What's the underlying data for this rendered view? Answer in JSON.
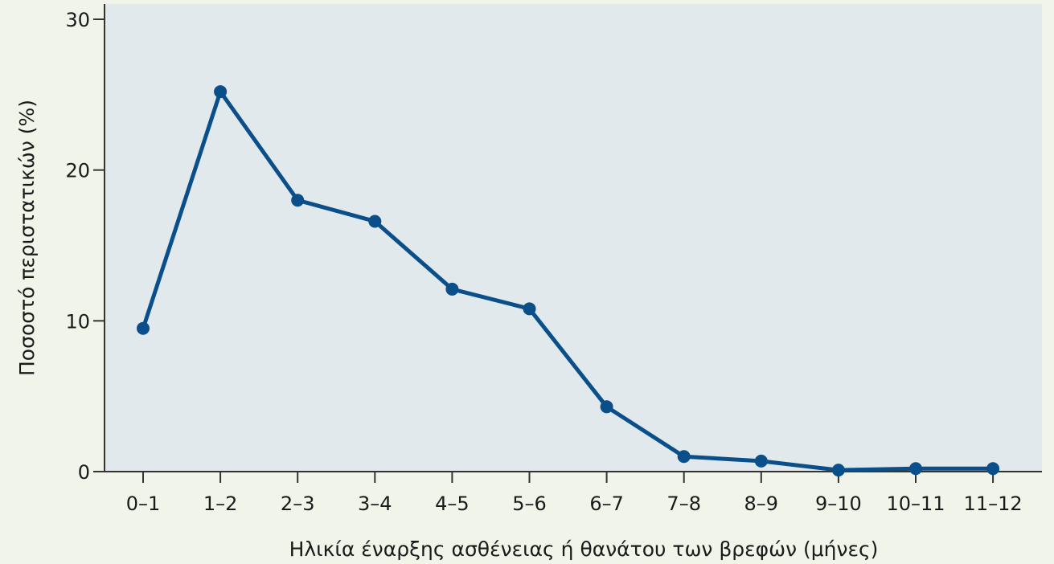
{
  "colors": {
    "page_background": "#f1f5e9",
    "plot_background": "#e1e9ec",
    "line": "#0b4f8a",
    "axis": "#333333",
    "text": "#1a1a1a"
  },
  "chart_data": {
    "type": "line",
    "xlabel": "Ηλικία έναρξης ασθένειας ή θανάτου των βρεφών (μήνες)",
    "ylabel": "Ποσοστό περιστατικών (%)",
    "categories": [
      "0–1",
      "1–2",
      "2–3",
      "3–4",
      "4–5",
      "5–6",
      "6–7",
      "7–8",
      "8–9",
      "9–10",
      "10–11",
      "11–12"
    ],
    "series": [
      {
        "values": [
          9.5,
          25.2,
          18.0,
          16.6,
          12.1,
          10.8,
          4.3,
          1.0,
          0.7,
          0.1,
          0.2,
          0.2
        ]
      }
    ],
    "yticks": [
      0,
      10,
      20,
      30
    ],
    "ylim": [
      0,
      30
    ],
    "grid": false,
    "legend": "none"
  }
}
